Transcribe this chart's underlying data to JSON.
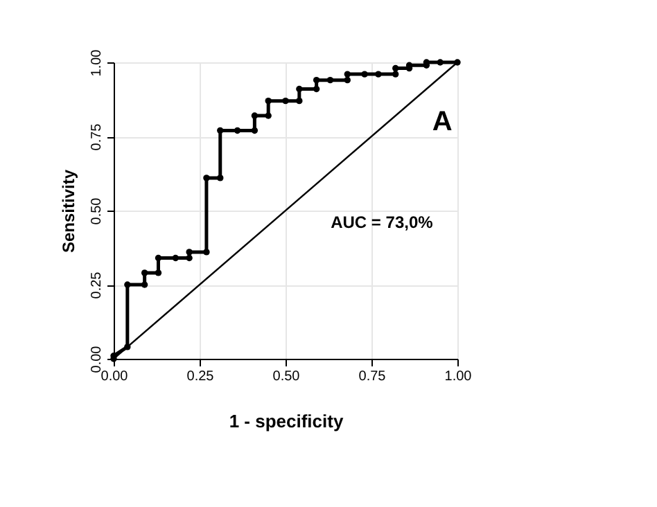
{
  "chart_data": {
    "type": "line",
    "xlabel": "1 - specificity",
    "ylabel": "Sensitivity",
    "annotations": [
      "A",
      "AUC = 73,0%"
    ],
    "xlim": [
      0,
      1
    ],
    "ylim": [
      0,
      1
    ],
    "xticks": [
      {
        "value": 0,
        "label": "0.00"
      },
      {
        "value": 0.25,
        "label": "0.25"
      },
      {
        "value": 0.5,
        "label": "0.50"
      },
      {
        "value": 0.75,
        "label": "0.75"
      },
      {
        "value": 1,
        "label": "1.00"
      }
    ],
    "yticks": [
      {
        "value": 0,
        "label": "0.00"
      },
      {
        "value": 0.25,
        "label": "0.25"
      },
      {
        "value": 0.5,
        "label": "0.50"
      },
      {
        "value": 0.75,
        "label": "0.75"
      },
      {
        "value": 1,
        "label": "1.00"
      }
    ],
    "grid": true,
    "marker": "circle",
    "line_style": "solid",
    "series": [
      {
        "color": "#000000",
        "x": [
          0,
          0,
          0.04,
          0.04,
          0.09,
          0.09,
          0.13,
          0.13,
          0.18,
          0.22,
          0.22,
          0.27,
          0.27,
          0.31,
          0.31,
          0.36,
          0.41,
          0.41,
          0.45,
          0.45,
          0.5,
          0.54,
          0.54,
          0.59,
          0.59,
          0.63,
          0.68,
          0.68,
          0.73,
          0.77,
          0.82,
          0.82,
          0.86,
          0.86,
          0.91,
          0.91,
          0.95,
          1.0
        ],
        "values": [
          0,
          0.01,
          0.04,
          0.25,
          0.25,
          0.29,
          0.29,
          0.34,
          0.34,
          0.34,
          0.36,
          0.36,
          0.61,
          0.61,
          0.77,
          0.77,
          0.77,
          0.82,
          0.82,
          0.87,
          0.87,
          0.87,
          0.91,
          0.91,
          0.94,
          0.94,
          0.94,
          0.96,
          0.96,
          0.96,
          0.96,
          0.98,
          0.98,
          0.99,
          0.99,
          1.0,
          1.0,
          1.0
        ]
      },
      {
        "color": "#000000",
        "marker": "none",
        "x": [
          0,
          1
        ],
        "values": [
          0,
          1
        ]
      }
    ]
  }
}
